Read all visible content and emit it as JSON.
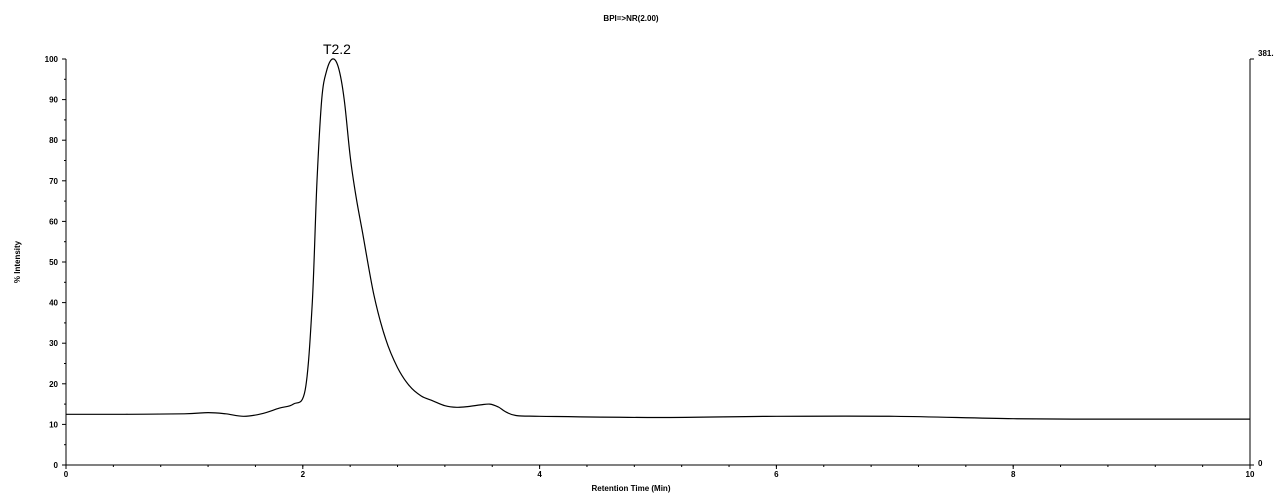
{
  "chart_data": {
    "type": "line",
    "title": "BPI=>NR(2.00)",
    "xlabel": "Retention Time (Min)",
    "ylabel": "% Intensity",
    "xlim": [
      0,
      10
    ],
    "ylim": [
      0,
      100
    ],
    "x_ticks": [
      "0",
      "2",
      "4",
      "6",
      "8",
      "10"
    ],
    "y_ticks": [
      "0",
      "10",
      "20",
      "30",
      "40",
      "50",
      "60",
      "70",
      "80",
      "90",
      "100"
    ],
    "right_axis_labels": {
      "top": "381.",
      "bottom": "0"
    },
    "annotations": [
      {
        "text": "T2.2",
        "x": 2.28,
        "y": 100
      }
    ],
    "grid": false,
    "series": [
      {
        "x": [
          0,
          0.5,
          1.0,
          1.2,
          1.35,
          1.5,
          1.65,
          1.8,
          1.92,
          2.02,
          2.08,
          2.12,
          2.16,
          2.2,
          2.25,
          2.3,
          2.35,
          2.4,
          2.45,
          2.5,
          2.6,
          2.7,
          2.8,
          2.9,
          3.0,
          3.1,
          3.2,
          3.3,
          3.4,
          3.5,
          3.58,
          3.65,
          3.72,
          3.8,
          4.0,
          5.0,
          6.0,
          7.0,
          8.0,
          9.0,
          10.0
        ],
        "y": [
          12.5,
          12.5,
          12.6,
          12.9,
          12.6,
          12.0,
          12.6,
          14.0,
          15.0,
          18.5,
          40.0,
          70.0,
          90.0,
          97.0,
          100.0,
          98.0,
          90.0,
          76.0,
          66.0,
          58.0,
          42.0,
          31.0,
          24.0,
          19.5,
          17.0,
          15.8,
          14.6,
          14.2,
          14.4,
          14.8,
          15.0,
          14.3,
          13.0,
          12.2,
          12.0,
          11.7,
          12.0,
          12.0,
          11.4,
          11.3,
          11.3
        ]
      }
    ]
  }
}
